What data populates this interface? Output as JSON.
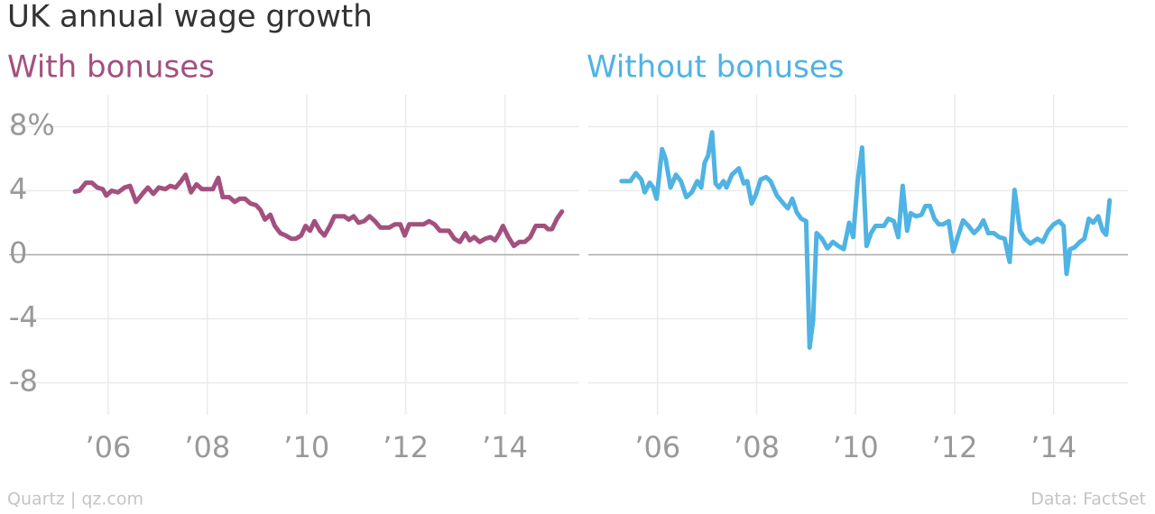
{
  "title": "UK annual wage growth",
  "credit": "Quartz | qz.com",
  "source": "Data: FactSet",
  "chart_data": [
    {
      "type": "line",
      "title": "With bonuses",
      "color": "#a3507f",
      "x": [
        2005.33,
        2005.42,
        2005.55,
        2005.67,
        2005.78,
        2005.89,
        2005.96,
        2006.07,
        2006.2,
        2006.33,
        2006.44,
        2006.56,
        2006.69,
        2006.8,
        2006.91,
        2007.02,
        2007.15,
        2007.25,
        2007.36,
        2007.47,
        2007.56,
        2007.67,
        2007.78,
        2007.89,
        2008.0,
        2008.11,
        2008.22,
        2008.31,
        2008.44,
        2008.55,
        2008.65,
        2008.76,
        2008.87,
        2008.98,
        2009.07,
        2009.16,
        2009.27,
        2009.36,
        2009.47,
        2009.58,
        2009.69,
        2009.78,
        2009.89,
        2009.98,
        2010.07,
        2010.16,
        2010.27,
        2010.36,
        2010.47,
        2010.56,
        2010.76,
        2010.85,
        2010.95,
        2011.05,
        2011.16,
        2011.27,
        2011.38,
        2011.49,
        2011.67,
        2011.78,
        2011.89,
        2011.98,
        2012.07,
        2012.36,
        2012.47,
        2012.58,
        2012.69,
        2012.87,
        2012.98,
        2013.09,
        2013.2,
        2013.29,
        2013.38,
        2013.49,
        2013.6,
        2013.71,
        2013.8,
        2013.89,
        2013.96,
        2014.07,
        2014.18,
        2014.29,
        2014.4,
        2014.51,
        2014.62,
        2014.8,
        2014.87,
        2014.95,
        2015.05,
        2015.15
      ],
      "values": [
        3.95,
        4.0,
        4.5,
        4.5,
        4.2,
        4.1,
        3.7,
        4.0,
        3.9,
        4.2,
        4.3,
        3.3,
        3.8,
        4.2,
        3.8,
        4.2,
        4.1,
        4.3,
        4.2,
        4.6,
        5.0,
        3.9,
        4.4,
        4.1,
        4.1,
        4.1,
        4.8,
        3.6,
        3.6,
        3.3,
        3.5,
        3.5,
        3.2,
        3.1,
        2.8,
        2.2,
        2.5,
        1.8,
        1.35,
        1.2,
        1.0,
        1.0,
        1.2,
        1.8,
        1.5,
        2.1,
        1.5,
        1.2,
        1.8,
        2.4,
        2.4,
        2.2,
        2.4,
        2.0,
        2.1,
        2.4,
        2.1,
        1.7,
        1.7,
        1.9,
        1.9,
        1.2,
        1.9,
        1.9,
        2.1,
        1.9,
        1.5,
        1.5,
        1.0,
        0.8,
        1.35,
        0.9,
        1.1,
        0.8,
        1.0,
        1.1,
        0.9,
        1.35,
        1.8,
        1.1,
        0.55,
        0.8,
        0.8,
        1.1,
        1.8,
        1.8,
        1.6,
        1.6,
        2.25,
        2.7
      ],
      "xlim": [
        2004,
        2015.5
      ],
      "xticks": [
        {
          "value": 2006,
          "label": "’06"
        },
        {
          "value": 2008,
          "label": "’08"
        },
        {
          "value": 2010,
          "label": "’10"
        },
        {
          "value": 2012,
          "label": "’12"
        },
        {
          "value": 2014,
          "label": "’14"
        }
      ],
      "ylim": [
        -10,
        10
      ],
      "yticks": [
        {
          "value": 8,
          "label": "8%"
        },
        4,
        0,
        -4,
        -8
      ],
      "grid": true
    },
    {
      "type": "line",
      "title": "Without bonuses",
      "color": "#4fb3e3",
      "x": [
        2005.27,
        2005.45,
        2005.56,
        2005.67,
        2005.74,
        2005.84,
        2005.91,
        2005.98,
        2006.09,
        2006.16,
        2006.26,
        2006.37,
        2006.47,
        2006.58,
        2006.69,
        2006.8,
        2006.88,
        2006.95,
        2007.02,
        2007.1,
        2007.17,
        2007.24,
        2007.33,
        2007.39,
        2007.5,
        2007.64,
        2007.74,
        2007.81,
        2007.9,
        2007.99,
        2008.08,
        2008.19,
        2008.28,
        2008.41,
        2008.54,
        2008.63,
        2008.72,
        2008.81,
        2008.9,
        2009.0,
        2009.07,
        2009.14,
        2009.21,
        2009.32,
        2009.43,
        2009.54,
        2009.65,
        2009.76,
        2009.87,
        2009.95,
        2010.04,
        2010.13,
        2010.22,
        2010.31,
        2010.4,
        2010.57,
        2010.66,
        2010.77,
        2010.86,
        2010.95,
        2011.04,
        2011.11,
        2011.22,
        2011.33,
        2011.41,
        2011.5,
        2011.59,
        2011.68,
        2011.77,
        2011.88,
        2011.97,
        2012.06,
        2012.17,
        2012.28,
        2012.39,
        2012.5,
        2012.58,
        2012.68,
        2012.79,
        2012.9,
        2013.01,
        2013.11,
        2013.21,
        2013.32,
        2013.42,
        2013.53,
        2013.67,
        2013.78,
        2013.89,
        2014.0,
        2014.11,
        2014.2,
        2014.26,
        2014.33,
        2014.42,
        2014.53,
        2014.62,
        2014.71,
        2014.8,
        2014.9,
        2014.99,
        2015.06,
        2015.13
      ],
      "values": [
        4.6,
        4.6,
        5.1,
        4.7,
        3.9,
        4.5,
        4.2,
        3.5,
        6.6,
        6.0,
        4.2,
        5.0,
        4.6,
        3.6,
        3.9,
        4.6,
        4.2,
        5.75,
        6.2,
        7.65,
        4.45,
        4.2,
        4.6,
        4.2,
        5.0,
        5.4,
        4.45,
        4.6,
        3.2,
        3.8,
        4.7,
        4.85,
        4.6,
        3.7,
        3.2,
        2.9,
        3.5,
        2.65,
        2.25,
        2.1,
        -5.8,
        -4.1,
        1.35,
        1.0,
        0.4,
        0.8,
        0.55,
        0.35,
        2.0,
        1.1,
        4.6,
        6.7,
        0.55,
        1.35,
        1.8,
        1.8,
        2.25,
        2.1,
        1.1,
        4.3,
        1.5,
        2.6,
        2.4,
        2.5,
        3.05,
        3.05,
        2.25,
        1.9,
        1.9,
        2.1,
        0.2,
        1.1,
        2.15,
        1.8,
        1.35,
        1.7,
        2.15,
        1.35,
        1.35,
        1.1,
        1.0,
        -0.45,
        4.05,
        1.5,
        1.0,
        0.7,
        1.0,
        0.8,
        1.5,
        1.9,
        2.1,
        1.8,
        -1.2,
        0.35,
        0.45,
        0.8,
        1.0,
        2.25,
        2.0,
        2.4,
        1.5,
        1.25,
        3.4
      ],
      "xlim": [
        2004.6,
        2015.5
      ],
      "xticks": [
        {
          "value": 2006,
          "label": "’06"
        },
        {
          "value": 2008,
          "label": "’08"
        },
        {
          "value": 2010,
          "label": "’10"
        },
        {
          "value": 2012,
          "label": "’12"
        },
        {
          "value": 2014,
          "label": "’14"
        }
      ],
      "ylim": [
        -10,
        10
      ],
      "yticks": [
        8,
        4,
        0,
        -4,
        -8
      ],
      "show_ytick_labels": false,
      "grid": true
    }
  ]
}
